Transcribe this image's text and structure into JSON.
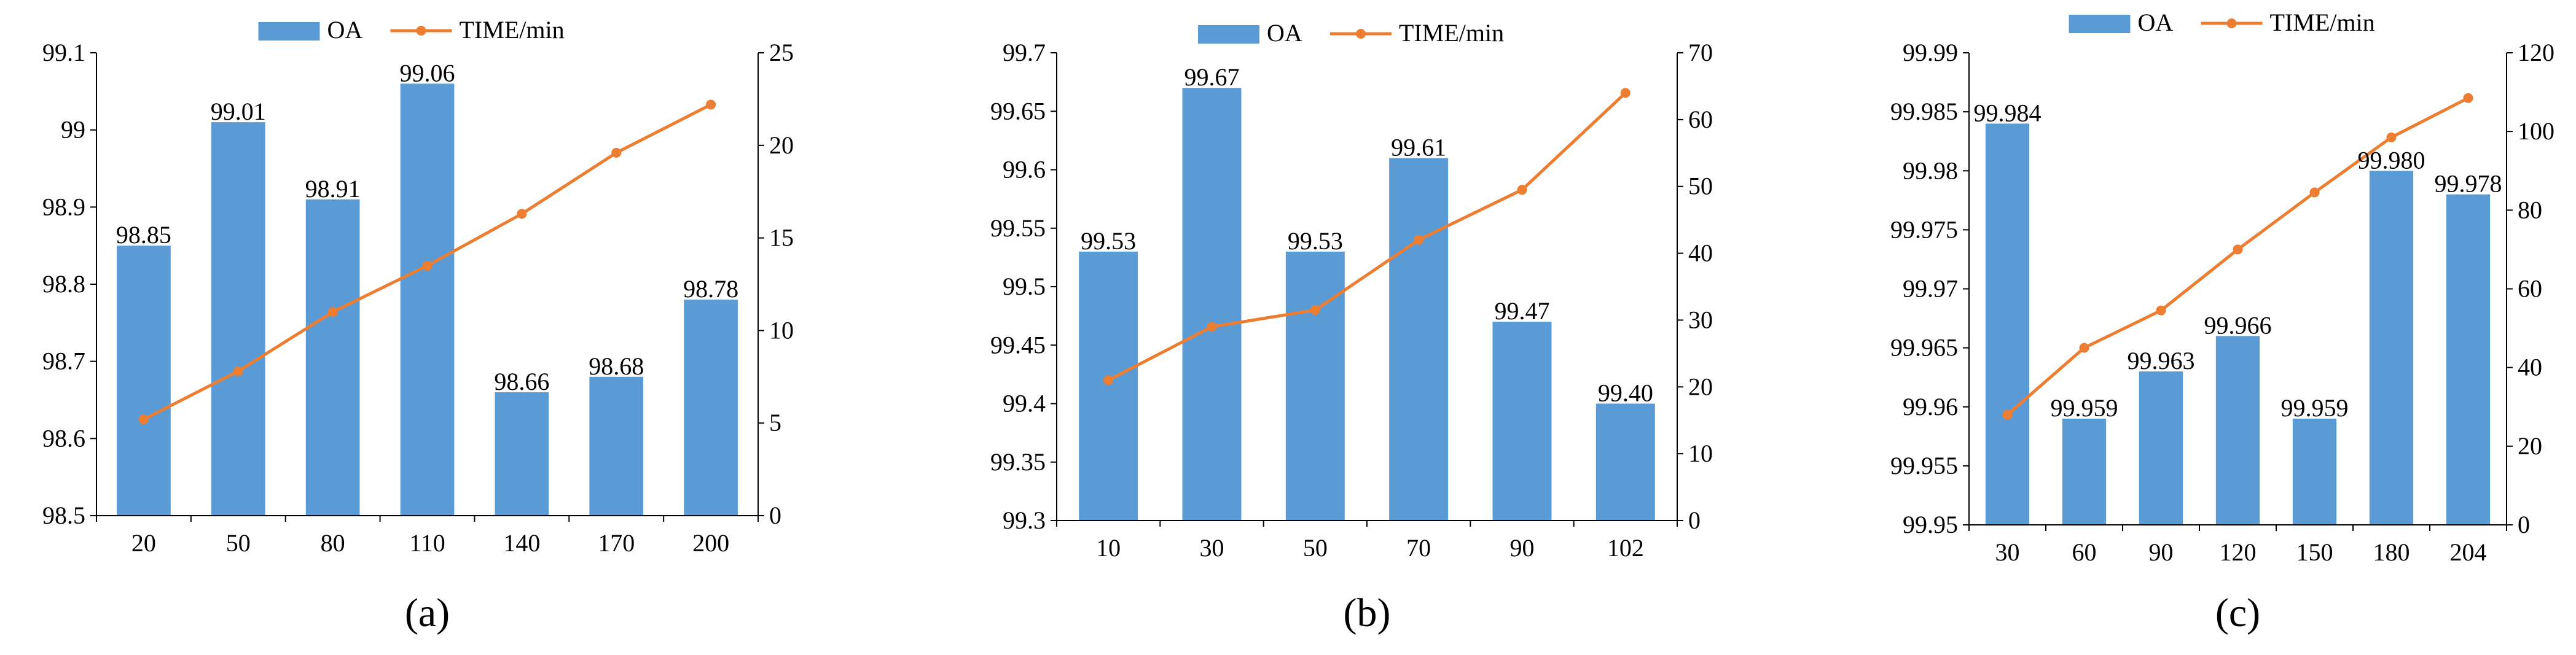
{
  "colors": {
    "bar": "#5B9BD5",
    "line": "#ED7D31",
    "axis": "#000000"
  },
  "chart_data": [
    {
      "type": "bar",
      "caption": "(a)",
      "legend": [
        "OA",
        "TIME/min"
      ],
      "categories": [
        "20",
        "50",
        "80",
        "110",
        "140",
        "170",
        "200"
      ],
      "series": [
        {
          "name": "OA",
          "kind": "bar",
          "axis": "left",
          "values": [
            98.85,
            99.01,
            98.91,
            99.06,
            98.66,
            98.68,
            98.78
          ],
          "labels": [
            "98.85",
            "99.01",
            "98.91",
            "99.06",
            "98.66",
            "98.68",
            "98.78"
          ]
        },
        {
          "name": "TIME/min",
          "kind": "line",
          "axis": "right",
          "values": [
            5.2,
            7.8,
            11.0,
            13.5,
            16.3,
            19.6,
            22.2
          ]
        }
      ],
      "ylim_left": [
        98.5,
        99.1
      ],
      "yticks_left": [
        "98.5",
        "98.6",
        "98.7",
        "98.8",
        "98.9",
        "99",
        "99.1"
      ],
      "ylim_right": [
        0,
        25
      ],
      "yticks_right": [
        "0",
        "5",
        "10",
        "15",
        "20",
        "25"
      ]
    },
    {
      "type": "bar",
      "caption": "(b)",
      "legend": [
        "OA",
        "TIME/min"
      ],
      "categories": [
        "10",
        "30",
        "50",
        "70",
        "90",
        "102"
      ],
      "series": [
        {
          "name": "OA",
          "kind": "bar",
          "axis": "left",
          "values": [
            99.53,
            99.67,
            99.53,
            99.61,
            99.47,
            99.4
          ],
          "labels": [
            "99.53",
            "99.67",
            "99.53",
            "99.61",
            "99.47",
            "99.40"
          ]
        },
        {
          "name": "TIME/min",
          "kind": "line",
          "axis": "right",
          "values": [
            21,
            29,
            31.5,
            42,
            49.5,
            64
          ]
        }
      ],
      "ylim_left": [
        99.3,
        99.7
      ],
      "yticks_left": [
        "99.3",
        "99.35",
        "99.4",
        "99.45",
        "99.5",
        "99.55",
        "99.6",
        "99.65",
        "99.7"
      ],
      "ylim_right": [
        0,
        70
      ],
      "yticks_right": [
        "0",
        "10",
        "20",
        "30",
        "40",
        "50",
        "60",
        "70"
      ]
    },
    {
      "type": "bar",
      "caption": "(c)",
      "legend": [
        "OA",
        "TIME/min"
      ],
      "categories": [
        "30",
        "60",
        "90",
        "120",
        "150",
        "180",
        "204"
      ],
      "series": [
        {
          "name": "OA",
          "kind": "bar",
          "axis": "left",
          "values": [
            99.984,
            99.959,
            99.963,
            99.966,
            99.959,
            99.98,
            99.978
          ],
          "labels": [
            "99.984",
            "99.959",
            "99.963",
            "99.966",
            "99.959",
            "99.980",
            "99.978"
          ]
        },
        {
          "name": "TIME/min",
          "kind": "line",
          "axis": "right",
          "values": [
            28,
            45,
            54.5,
            70,
            84.5,
            98.5,
            108.5
          ]
        }
      ],
      "ylim_left": [
        99.95,
        99.99
      ],
      "yticks_left": [
        "99.95",
        "99.955",
        "99.96",
        "99.965",
        "99.97",
        "99.975",
        "99.98",
        "99.985",
        "99.99"
      ],
      "ylim_right": [
        0,
        120
      ],
      "yticks_right": [
        "0",
        "20",
        "40",
        "60",
        "80",
        "100",
        "120"
      ]
    }
  ]
}
